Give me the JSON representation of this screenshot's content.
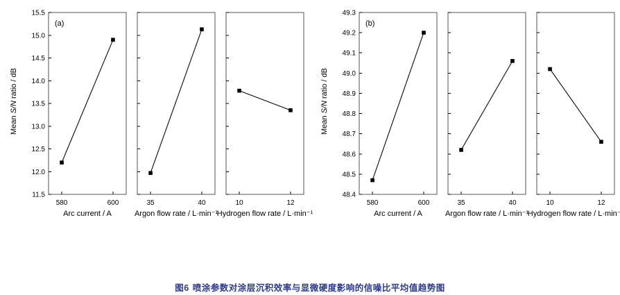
{
  "caption": {
    "label": "图6",
    "text": "喷涂参数对涂层沉积效率与显微硬度影响的信噪比平均值趋势图"
  },
  "colors": {
    "marker": "#000000",
    "line": "#1a1a1a",
    "frame": "#555555",
    "caption": "#2b3990"
  },
  "chart_data": [
    {
      "type": "line",
      "panel_label": "(a)",
      "ylabel_prefix": "Mean ",
      "ylabel_italic": "S/N",
      "ylabel_suffix": " ratio / dB",
      "ylim": [
        11.5,
        15.5
      ],
      "ytick_step": 0.5,
      "ytick_decimals": 1,
      "grid": false,
      "legend": "none",
      "panels": [
        {
          "xlabel": "Arc current / A",
          "categories": [
            "580",
            "600"
          ],
          "values": [
            12.2,
            14.9
          ]
        },
        {
          "xlabel": "Argon flow rate / L·min⁻¹",
          "categories": [
            "35",
            "40"
          ],
          "values": [
            11.97,
            15.13
          ]
        },
        {
          "xlabel": "Hydrogen flow rate / L·min⁻¹",
          "categories": [
            "10",
            "12"
          ],
          "values": [
            13.78,
            13.35
          ]
        }
      ]
    },
    {
      "type": "line",
      "panel_label": "(b)",
      "ylabel_prefix": "Mean ",
      "ylabel_italic": "S/N",
      "ylabel_suffix": " ratio / dB",
      "ylim": [
        48.4,
        49.3
      ],
      "ytick_step": 0.1,
      "ytick_decimals": 1,
      "grid": false,
      "legend": "none",
      "panels": [
        {
          "xlabel": "Arc current / A",
          "categories": [
            "580",
            "600"
          ],
          "values": [
            48.47,
            49.2
          ]
        },
        {
          "xlabel": "Argon flow rate / L·min⁻¹",
          "categories": [
            "35",
            "40"
          ],
          "values": [
            48.62,
            49.06
          ]
        },
        {
          "xlabel": "Hydrogen flow rate / L·min⁻¹",
          "categories": [
            "10",
            "12"
          ],
          "values": [
            49.02,
            48.66
          ]
        }
      ]
    }
  ]
}
